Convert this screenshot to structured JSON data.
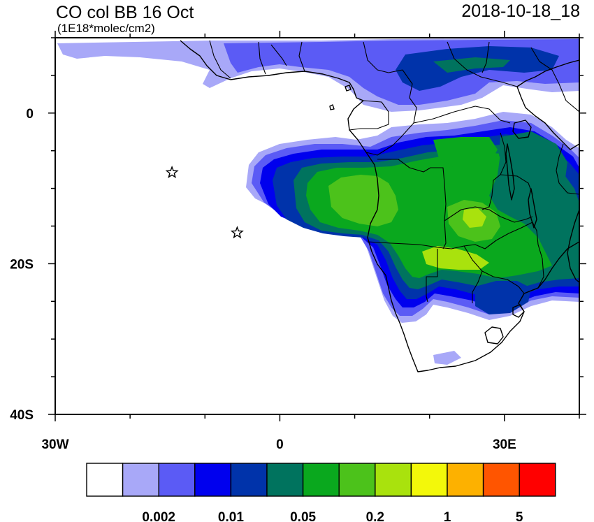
{
  "header": {
    "title": "CO col BB 16 Oct",
    "units": "(1E18*molec/cm2)",
    "datetime": "2018-10-18_18"
  },
  "map": {
    "lon_range": [
      -30,
      40
    ],
    "lat_range": [
      -40,
      10
    ],
    "lon_ticks": [
      {
        "value": -30,
        "label": "30W"
      },
      {
        "value": 0,
        "label": "0"
      },
      {
        "value": 30,
        "label": "30E"
      }
    ],
    "lat_ticks": [
      {
        "value": 0,
        "label": "0"
      },
      {
        "value": -20,
        "label": "20S"
      },
      {
        "value": -40,
        "label": "40S"
      }
    ],
    "markers": [
      {
        "name": "star",
        "lon": -14.4,
        "lat": -7.9
      },
      {
        "name": "star",
        "lon": -5.7,
        "lat": -15.9
      }
    ]
  },
  "colorbar": {
    "colors": [
      "#ffffff",
      "#a8a8f8",
      "#5b5bf5",
      "#0000ee",
      "#0033aa",
      "#00735e",
      "#0aa81e",
      "#4cc21b",
      "#a9e20d",
      "#f3f80a",
      "#fdb100",
      "#ff5500",
      "#ff0000"
    ],
    "labels": [
      {
        "after_box": 2,
        "text": "0.002"
      },
      {
        "after_box": 4,
        "text": "0.01"
      },
      {
        "after_box": 6,
        "text": "0.05"
      },
      {
        "after_box": 8,
        "text": "0.2"
      },
      {
        "after_box": 10,
        "text": "1"
      },
      {
        "after_box": 12,
        "text": "5"
      }
    ]
  }
}
